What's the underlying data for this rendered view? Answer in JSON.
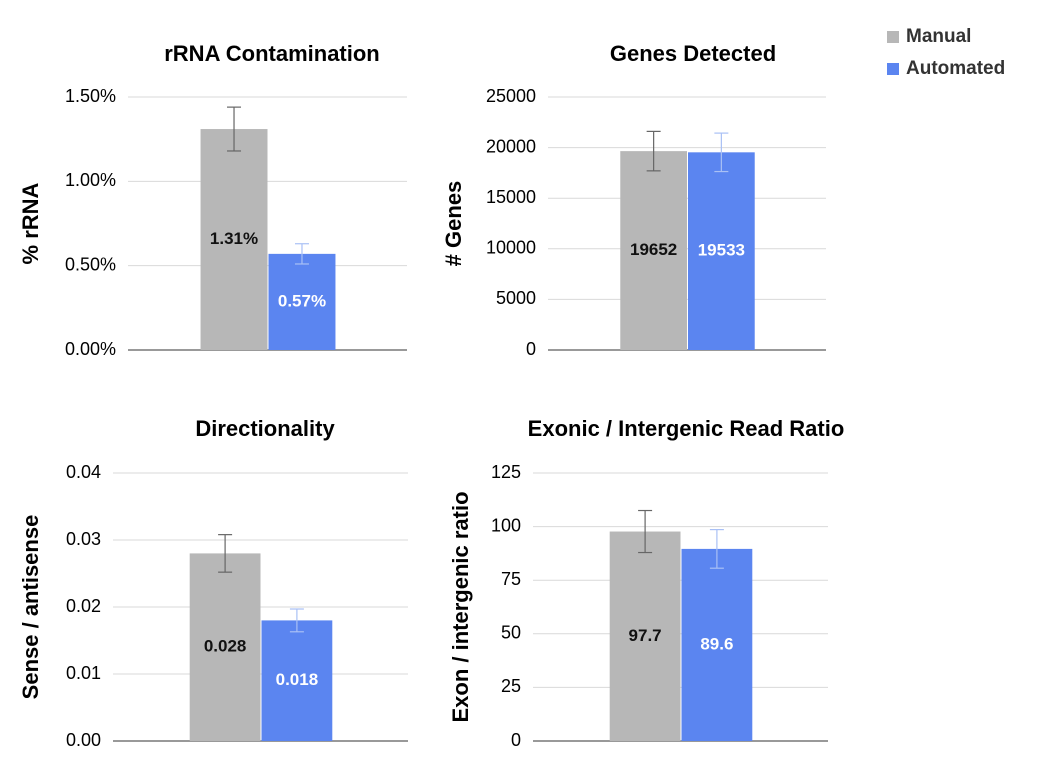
{
  "legend": [
    {
      "name": "Manual",
      "color": "#b7b7b7"
    },
    {
      "name": "Automated",
      "color": "#5b85f0"
    }
  ],
  "chart_data": [
    {
      "type": "bar",
      "title": "rRNA Contamination",
      "y_label": "% rRNA",
      "values": [
        1.31,
        0.57
      ],
      "value_labels": [
        "1.31%",
        "0.57%"
      ],
      "errors": [
        0.13,
        0.06
      ],
      "ylim": [
        0,
        1.5
      ],
      "yticks": [
        {
          "value": 0,
          "label": "0.00%"
        },
        {
          "value": 0.5,
          "label": "0.50%"
        },
        {
          "value": 1,
          "label": "1.00%"
        },
        {
          "value": 1.5,
          "label": "1.50%"
        }
      ],
      "grid": true
    },
    {
      "type": "bar",
      "title": "Genes Detected",
      "y_label": "# Genes",
      "values": [
        19652,
        19533
      ],
      "errors": [
        1950,
        1900
      ],
      "ylim": [
        0,
        25000
      ],
      "yticks": [
        0,
        5000,
        10000,
        15000,
        20000,
        25000
      ],
      "grid": true
    },
    {
      "type": "bar",
      "title": "Directionality",
      "y_label": "Sense / antisense",
      "values": [
        0.028,
        0.018
      ],
      "errors": [
        0.0028,
        0.0017
      ],
      "ylim": [
        0,
        0.04
      ],
      "yticks": [
        {
          "value": 0,
          "label": "0.00"
        },
        0.01,
        0.02,
        0.03,
        0.04
      ],
      "grid": true
    },
    {
      "type": "bar",
      "title": "Exonic / Intergenic Read Ratio",
      "y_label": "Exon / intergenic ratio",
      "values": [
        97.7,
        89.6
      ],
      "errors": [
        9.8,
        9
      ],
      "ylim": [
        0,
        125
      ],
      "yticks": [
        0,
        25,
        50,
        75,
        100,
        125
      ],
      "grid": true
    }
  ]
}
